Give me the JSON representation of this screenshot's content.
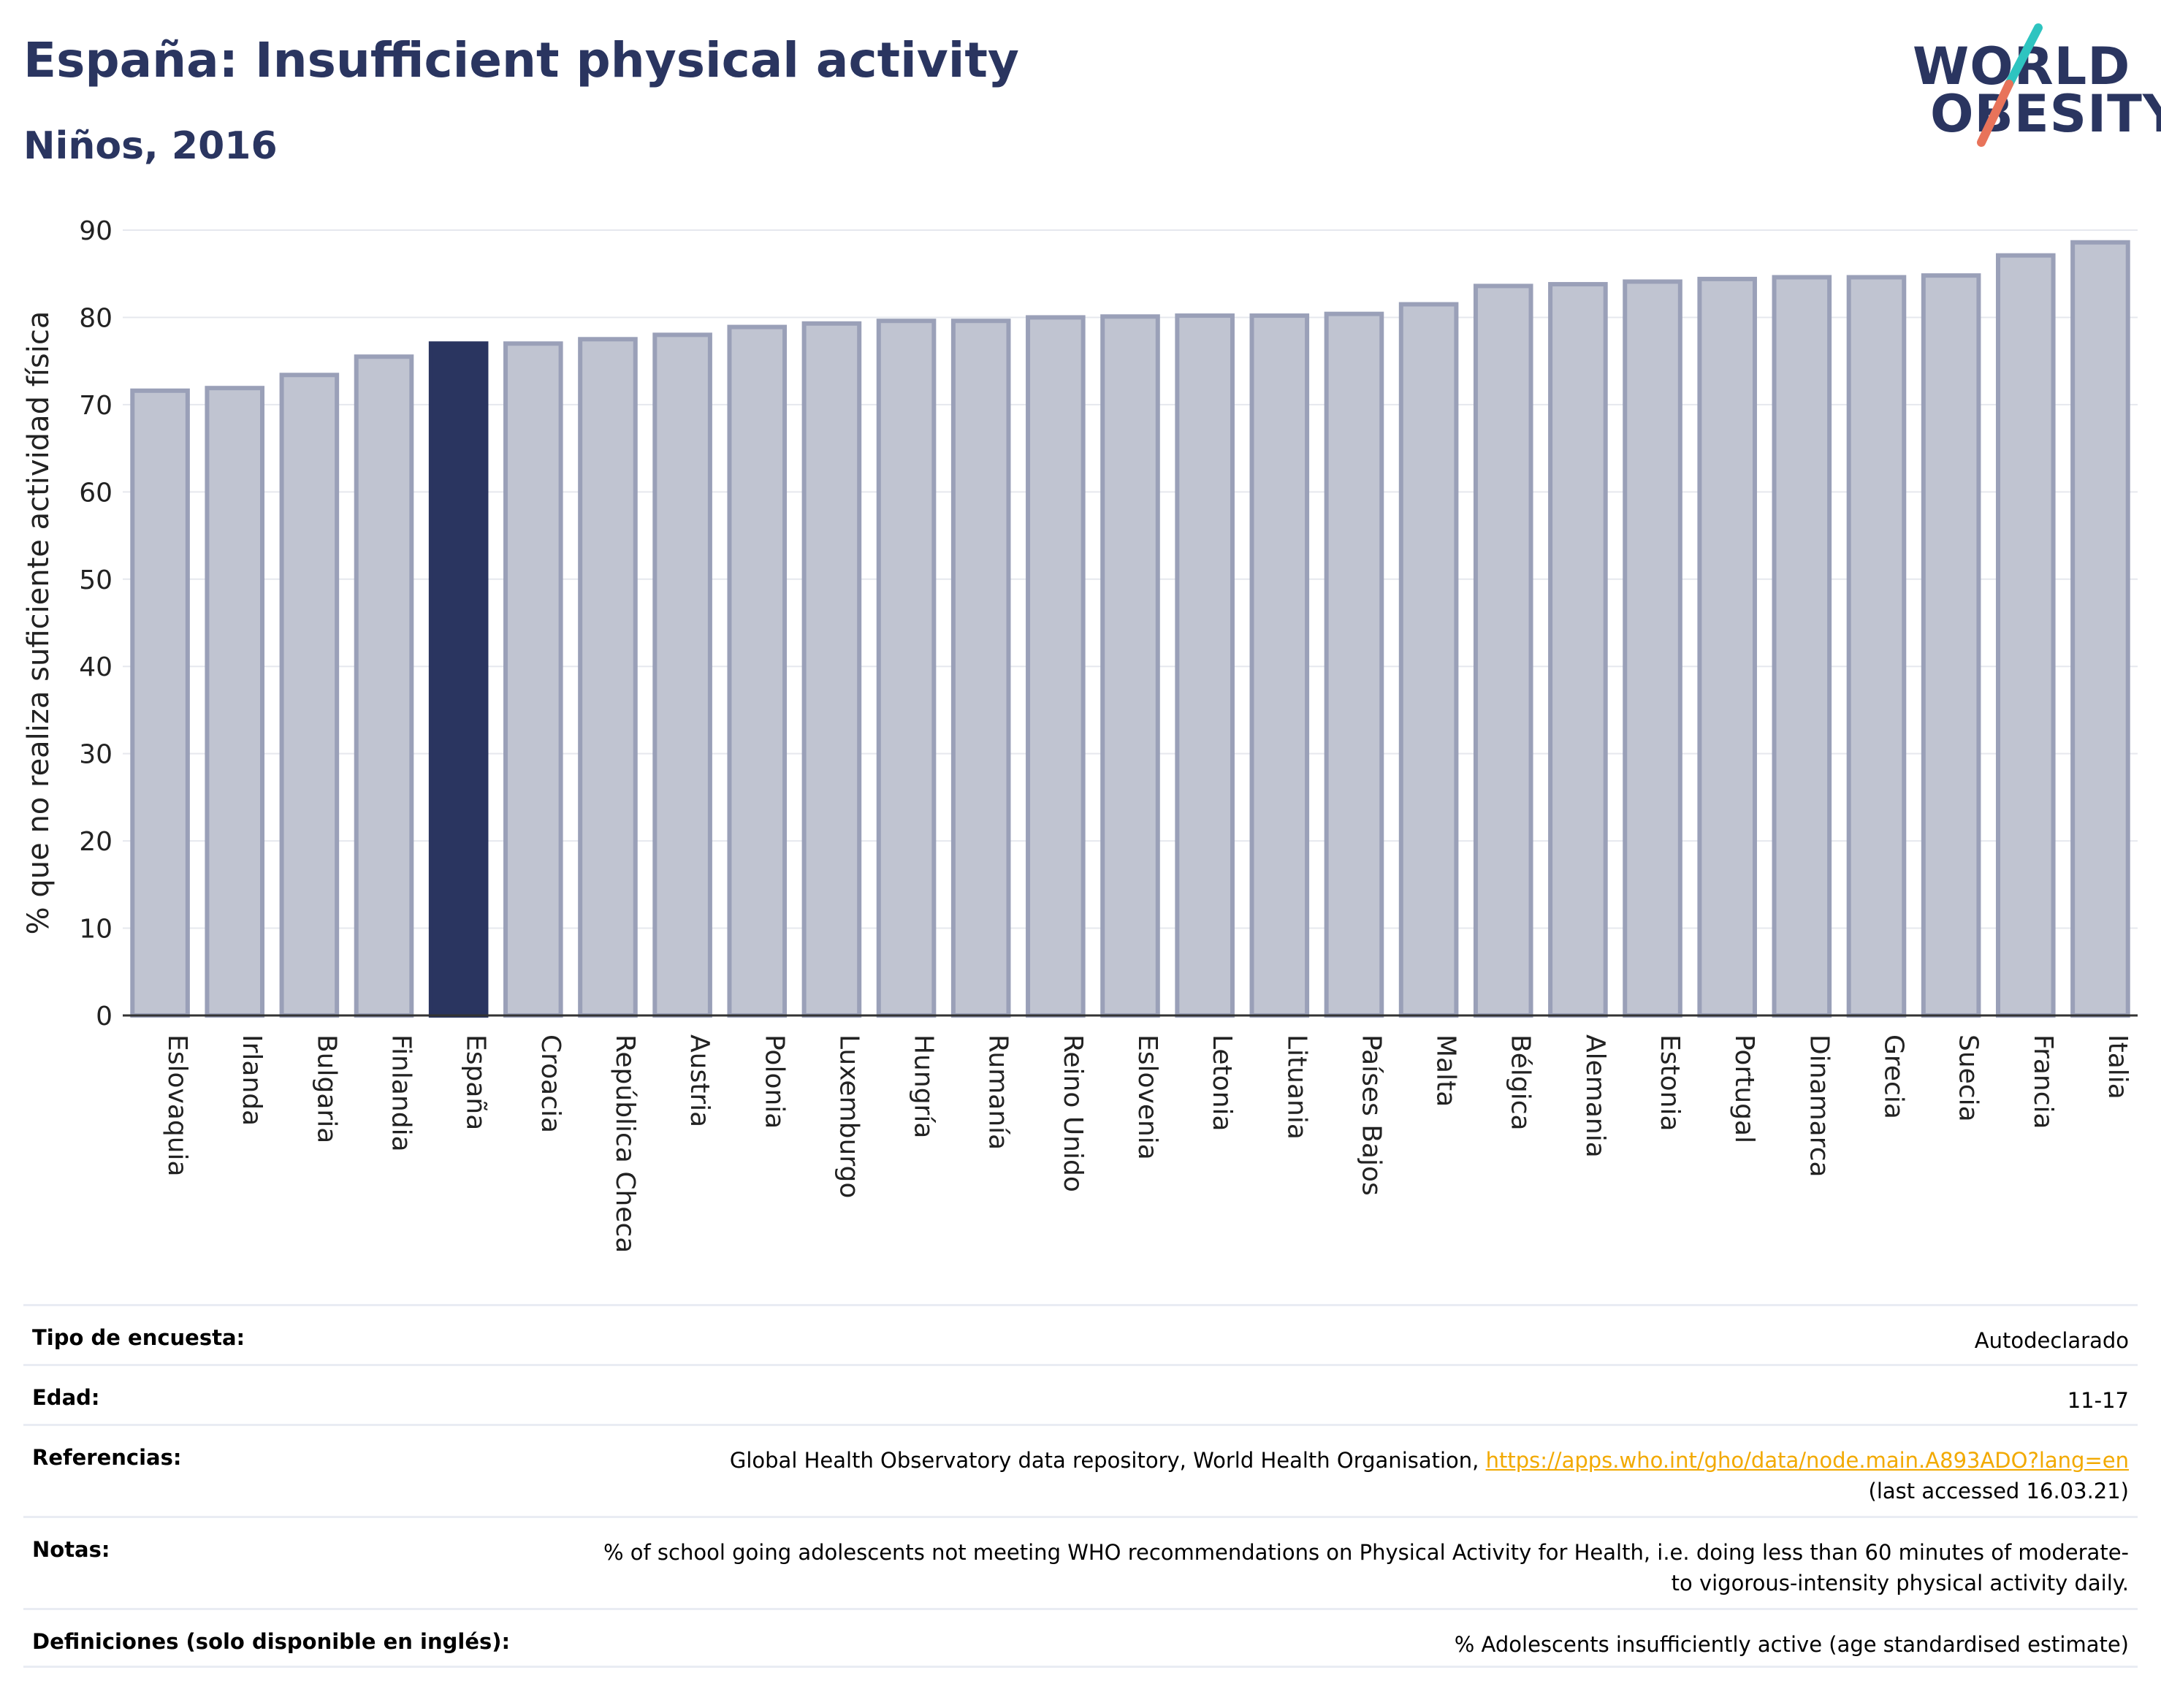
{
  "header": {
    "title": "España: Insufficient physical activity",
    "subtitle": "Niños, 2016"
  },
  "logo": {
    "line1": "WORLD",
    "line2": "OBESITY",
    "icon": "world-obesity-slash-logo",
    "colors": {
      "text": "#2a3560",
      "slash_top": "#2ec4c0",
      "slash_bottom": "#e8735a"
    }
  },
  "colors": {
    "highlight_bar": "#2a3560",
    "other_bar": "#c0c4d1",
    "bar_border": "#9aa0b8",
    "link": "#f2a900"
  },
  "chart_data": {
    "type": "bar",
    "title": "España: Insufficient physical activity",
    "subtitle": "Niños, 2016",
    "xlabel": "",
    "ylabel": "% que no realiza suficiente actividad física",
    "ylim": [
      0,
      90
    ],
    "yticks": [
      0,
      10,
      20,
      30,
      40,
      50,
      60,
      70,
      80,
      90
    ],
    "grid": true,
    "highlight": "España",
    "categories": [
      "Eslovaquia",
      "Irlanda",
      "Bulgaria",
      "Finlandia",
      "España",
      "Croacia",
      "República Checa",
      "Austria",
      "Polonia",
      "Luxemburgo",
      "Hungría",
      "Rumanía",
      "Reino Unido",
      "Eslovenia",
      "Letonia",
      "Lituania",
      "Países Bajos",
      "Malta",
      "Bélgica",
      "Alemania",
      "Estonia",
      "Portugal",
      "Dinamarca",
      "Grecia",
      "Suecia",
      "Francia",
      "Italia"
    ],
    "values": [
      71.6,
      71.9,
      73.4,
      75.5,
      77.0,
      77.0,
      77.5,
      78.0,
      78.9,
      79.3,
      79.6,
      79.6,
      80.0,
      80.1,
      80.2,
      80.2,
      80.4,
      81.5,
      83.6,
      83.8,
      84.1,
      84.4,
      84.6,
      84.6,
      84.8,
      87.1,
      88.6
    ]
  },
  "table": {
    "rows": [
      {
        "label": "Tipo de encuesta:",
        "value": "Autodeclarado"
      },
      {
        "label": "Edad:",
        "value": "11-17"
      },
      {
        "label": "Referencias:",
        "value_prefix": "Global Health Observatory data repository, World Health Organisation, ",
        "link": "https://apps.who.int/gho/data/node.main.A893ADO?lang=en",
        "value_suffix": "(last accessed 16.03.21)"
      },
      {
        "label": "Notas:",
        "value": "% of school going adolescents not meeting WHO recommendations on Physical Activity for Health, i.e. doing less than 60 minutes of moderate- to vigorous-intensity physical activity daily."
      },
      {
        "label": "Definiciones (solo disponible en inglés):",
        "value": "% Adolescents insufficiently active (age standardised estimate)"
      }
    ]
  }
}
